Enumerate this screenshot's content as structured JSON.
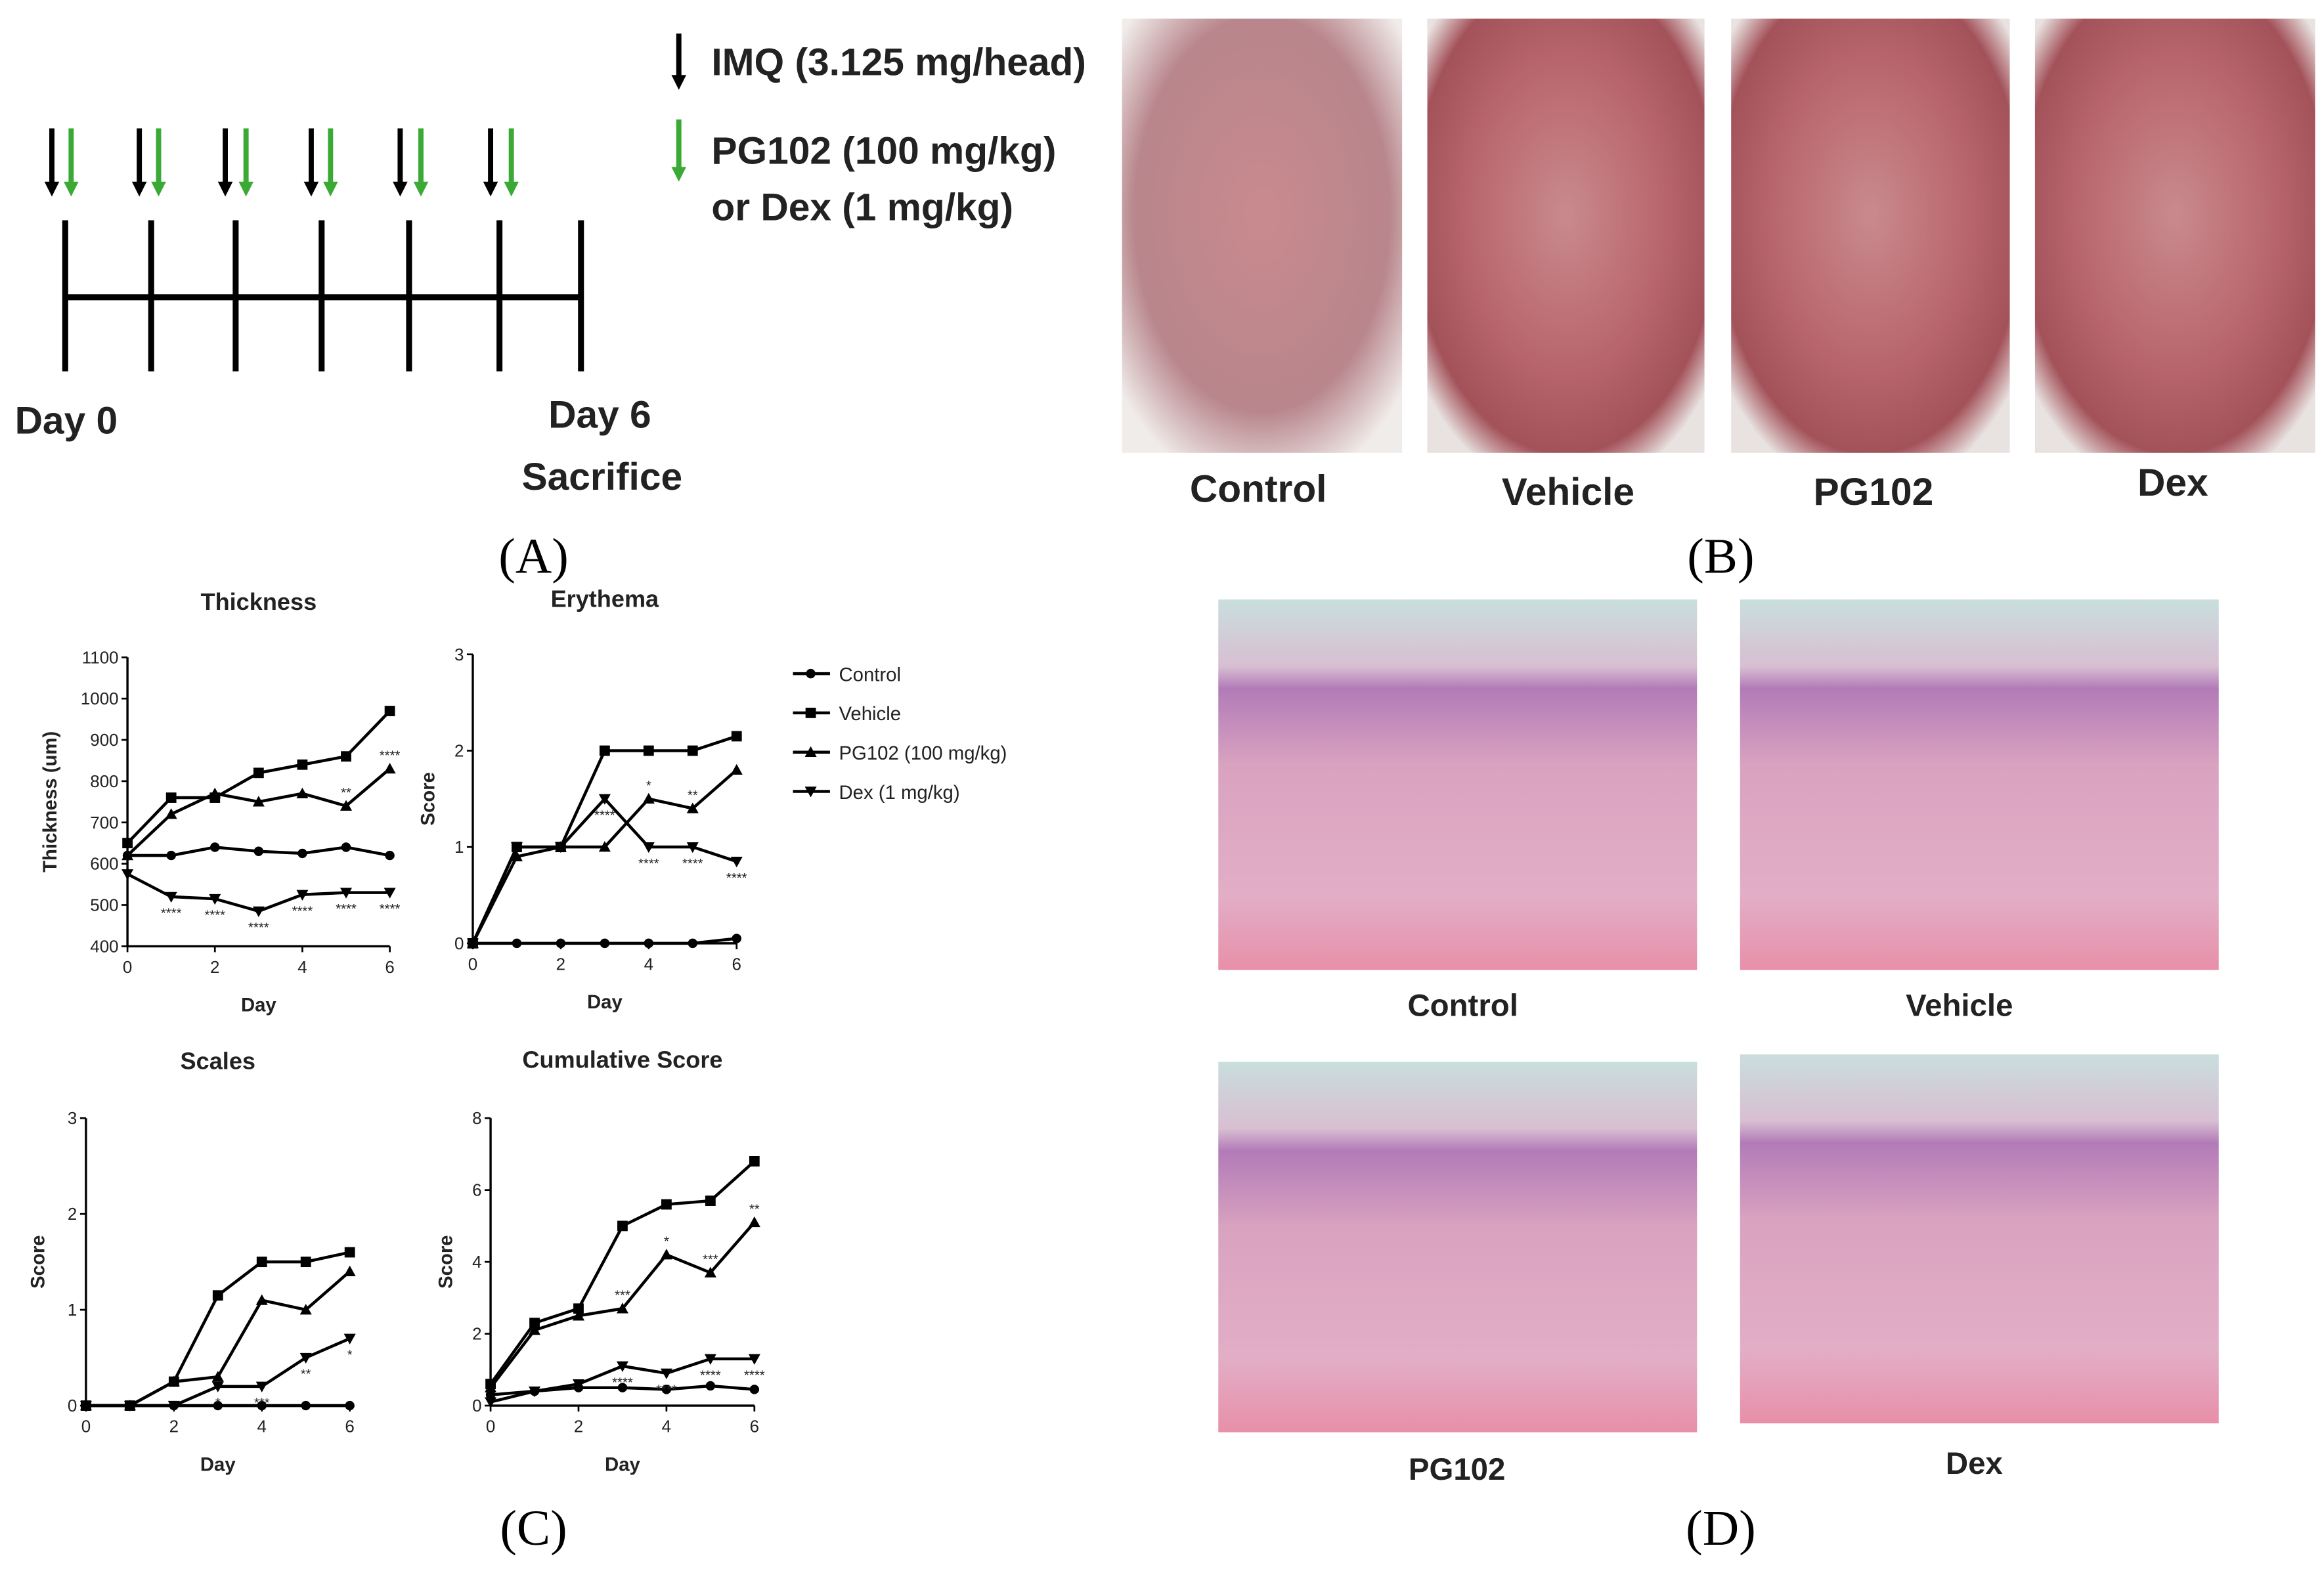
{
  "panel_a": {
    "legend_imq": "IMQ (3.125 mg/head)",
    "legend_pg102": "PG102 (100 mg/kg)",
    "legend_dex": "or Dex (1 mg/kg)",
    "day_start": "Day 0",
    "day_end": "Day 6",
    "sacrifice": "Sacrifice",
    "label": "(A)"
  },
  "panel_b": {
    "images": [
      "Control",
      "Vehicle",
      "PG102",
      "Dex"
    ],
    "label": "(B)"
  },
  "panel_d": {
    "images": [
      "Control",
      "Vehicle",
      "PG102",
      "Dex"
    ],
    "label": "(D)"
  },
  "panel_c": {
    "label": "(C)",
    "legend": [
      "Control",
      "Vehicle",
      "PG102 (100 mg/kg)",
      "Dex (1 mg/kg)"
    ]
  },
  "chart_data": [
    {
      "type": "line",
      "title": "Thickness",
      "x_label": "Day",
      "y_label": "Thickness (um)",
      "x": [
        0,
        1,
        2,
        3,
        4,
        5,
        6
      ],
      "xlim": [
        0,
        6
      ],
      "xticks": [
        0,
        2,
        4,
        6
      ],
      "ylim": [
        400,
        1100
      ],
      "yticks": [
        400,
        500,
        600,
        700,
        800,
        900,
        1000,
        1100
      ],
      "series": [
        {
          "marker": "circle",
          "color": "#000000",
          "values": [
            620,
            620,
            640,
            630,
            625,
            640,
            620
          ],
          "significance": [
            null,
            null,
            null,
            null,
            null,
            null,
            null
          ]
        },
        {
          "marker": "square",
          "color": "#000000",
          "values": [
            650,
            760,
            760,
            820,
            840,
            860,
            970
          ],
          "significance": [
            null,
            null,
            null,
            null,
            null,
            null,
            null
          ]
        },
        {
          "marker": "triangle-up",
          "color": "#000000",
          "values": [
            620,
            720,
            770,
            750,
            770,
            740,
            830
          ],
          "significance": [
            null,
            null,
            null,
            null,
            null,
            "**",
            "****"
          ]
        },
        {
          "marker": "triangle-down",
          "color": "#000000",
          "values": [
            575,
            520,
            515,
            485,
            525,
            530,
            530
          ],
          "significance": [
            null,
            "****",
            "****",
            "****",
            "****",
            "****",
            "****"
          ]
        }
      ]
    },
    {
      "type": "line",
      "title": "Erythema",
      "x_label": "Day",
      "y_label": "Score",
      "x": [
        0,
        1,
        2,
        3,
        4,
        5,
        6
      ],
      "xlim": [
        0,
        6
      ],
      "xticks": [
        0,
        2,
        4,
        6
      ],
      "ylim": [
        0,
        3
      ],
      "yticks": [
        0,
        1,
        2,
        3
      ],
      "series": [
        {
          "marker": "circle",
          "color": "#000000",
          "values": [
            0,
            0,
            0,
            0,
            0,
            0,
            0.05
          ],
          "significance": [
            null,
            null,
            null,
            null,
            null,
            null,
            null
          ]
        },
        {
          "marker": "square",
          "color": "#000000",
          "values": [
            0,
            1,
            1,
            2,
            2,
            2,
            2.15
          ],
          "significance": [
            null,
            null,
            null,
            null,
            null,
            null,
            null
          ]
        },
        {
          "marker": "triangle-up",
          "color": "#000000",
          "values": [
            0,
            0.9,
            1,
            1,
            1.5,
            1.4,
            1.8
          ],
          "significance": [
            null,
            null,
            null,
            null,
            "*",
            "**",
            null
          ]
        },
        {
          "marker": "triangle-down",
          "color": "#000000",
          "values": [
            0,
            1,
            1,
            1.5,
            1,
            1,
            0.85
          ],
          "significance": [
            null,
            null,
            null,
            "****",
            "****",
            "****",
            "****"
          ]
        }
      ]
    },
    {
      "type": "line",
      "title": "Scales",
      "x_label": "Day",
      "y_label": "Score",
      "x": [
        0,
        1,
        2,
        3,
        4,
        5,
        6
      ],
      "xlim": [
        0,
        6
      ],
      "xticks": [
        0,
        2,
        4,
        6
      ],
      "ylim": [
        0,
        3
      ],
      "yticks": [
        0,
        1,
        2,
        3
      ],
      "series": [
        {
          "marker": "circle",
          "color": "#000000",
          "values": [
            0,
            0,
            0,
            0,
            0,
            0,
            0
          ],
          "significance": [
            null,
            null,
            null,
            null,
            null,
            null,
            null
          ]
        },
        {
          "marker": "square",
          "color": "#000000",
          "values": [
            0,
            0,
            0.25,
            1.15,
            1.5,
            1.5,
            1.6
          ],
          "significance": [
            null,
            null,
            null,
            null,
            null,
            null,
            null
          ]
        },
        {
          "marker": "triangle-up",
          "color": "#000000",
          "values": [
            0,
            0,
            0.25,
            0.3,
            1.1,
            1.0,
            1.4
          ],
          "significance": [
            null,
            null,
            null,
            null,
            null,
            null,
            null
          ]
        },
        {
          "marker": "triangle-down",
          "color": "#000000",
          "values": [
            0,
            0,
            0,
            0.2,
            0.2,
            0.5,
            0.7
          ],
          "significance": [
            null,
            null,
            null,
            "*",
            "***",
            "**",
            "*"
          ]
        }
      ]
    },
    {
      "type": "line",
      "title": "Cumulative Score",
      "x_label": "Day",
      "y_label": "Score",
      "x": [
        0,
        1,
        2,
        3,
        4,
        5,
        6
      ],
      "xlim": [
        0,
        6
      ],
      "xticks": [
        0,
        2,
        4,
        6
      ],
      "ylim": [
        0,
        8
      ],
      "yticks": [
        0,
        2,
        4,
        6,
        8
      ],
      "series": [
        {
          "marker": "circle",
          "color": "#000000",
          "values": [
            0.3,
            0.4,
            0.5,
            0.5,
            0.45,
            0.55,
            0.45
          ],
          "significance": [
            null,
            null,
            null,
            null,
            null,
            null,
            null
          ]
        },
        {
          "marker": "square",
          "color": "#000000",
          "values": [
            0.6,
            2.3,
            2.7,
            5.0,
            5.6,
            5.7,
            6.8
          ],
          "significance": [
            null,
            null,
            null,
            null,
            null,
            null,
            null
          ]
        },
        {
          "marker": "triangle-up",
          "color": "#000000",
          "values": [
            0.5,
            2.1,
            2.5,
            2.7,
            4.2,
            3.7,
            5.1
          ],
          "significance": [
            null,
            null,
            null,
            "***",
            "*",
            "***",
            "**"
          ]
        },
        {
          "marker": "triangle-down",
          "color": "#000000",
          "values": [
            0.1,
            0.4,
            0.6,
            1.1,
            0.9,
            1.3,
            1.3
          ],
          "significance": [
            null,
            null,
            null,
            "****",
            "****",
            "****",
            "****"
          ]
        }
      ]
    }
  ]
}
